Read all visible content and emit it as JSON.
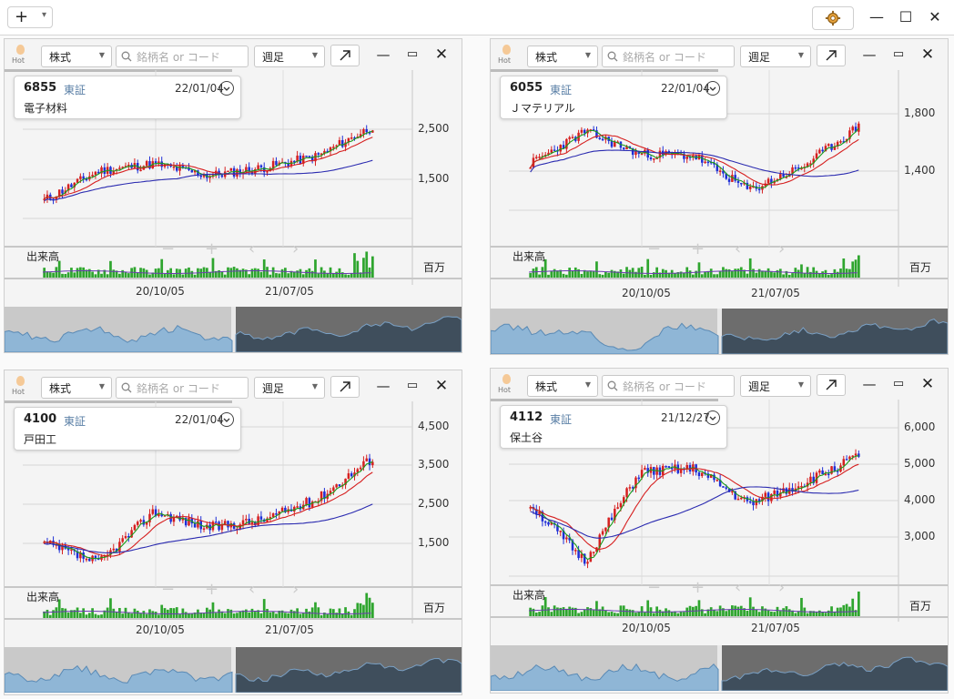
{
  "app": {
    "add_icon": "plus-icon",
    "settings_icon": "gear-icon"
  },
  "panels": [
    {
      "id": "p1",
      "hot_label": "Hot",
      "type_select": "株式",
      "search_placeholder": "銘柄名 or コード",
      "period_select": "週足",
      "code": "6855",
      "market": "東証",
      "date": "22/01/04",
      "name": "電子材料",
      "volume_label": "出来高",
      "volume_unit": "百万",
      "x_ticks": [
        "20/10/05",
        "21/07/05"
      ],
      "y_ticks": [
        "2,500",
        "1,500"
      ]
    },
    {
      "id": "p2",
      "hot_label": "Hot",
      "type_select": "株式",
      "search_placeholder": "銘柄名 or コード",
      "period_select": "週足",
      "code": "6055",
      "market": "東証",
      "date": "22/01/04",
      "name": "Ｊマテリアル",
      "volume_label": "出来高",
      "volume_unit": "百万",
      "x_ticks": [
        "20/10/05",
        "21/07/05"
      ],
      "y_ticks": [
        "1,800",
        "1,400"
      ]
    },
    {
      "id": "p3",
      "hot_label": "Hot",
      "type_select": "株式",
      "search_placeholder": "銘柄名 or コード",
      "period_select": "週足",
      "code": "4100",
      "market": "東証",
      "date": "22/01/04",
      "name": "戸田工",
      "volume_label": "出来高",
      "volume_unit": "百万",
      "x_ticks": [
        "20/10/05",
        "21/07/05"
      ],
      "y_ticks": [
        "4,500",
        "3,500",
        "2,500",
        "1,500"
      ]
    },
    {
      "id": "p4",
      "hot_label": "Hot",
      "type_select": "株式",
      "search_placeholder": "銘柄名 or コード",
      "period_select": "週足",
      "code": "4112",
      "market": "東証",
      "date": "21/12/27",
      "name": "保土谷",
      "volume_label": "出来高",
      "volume_unit": "百万",
      "x_ticks": [
        "20/10/05",
        "21/07/05"
      ],
      "y_ticks": [
        "6,000",
        "5,000",
        "4,000",
        "3,000"
      ]
    }
  ],
  "colors": {
    "up": "#d62020",
    "down": "#1f2fd6",
    "ma_short": "#1a9a1a",
    "ma_mid": "#d62020",
    "ma_long": "#2a2ab0",
    "volume": "#2ea52e"
  }
}
